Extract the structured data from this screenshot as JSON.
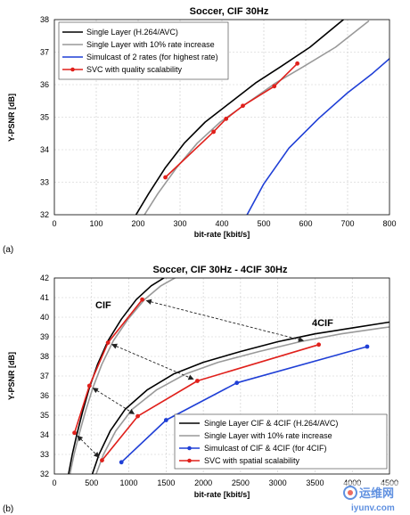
{
  "chart_data": [
    {
      "type": "line",
      "panel_label": "(a)",
      "title": "Soccer, CIF 30Hz",
      "xlabel": "bit-rate [kbit/s]",
      "ylabel": "Y-PSNR [dB]",
      "xlim": [
        0,
        800
      ],
      "ylim": [
        32,
        38
      ],
      "x_ticks": [
        "0",
        "100",
        "200",
        "300",
        "400",
        "500",
        "600",
        "700",
        "800"
      ],
      "y_ticks": [
        "32",
        "33",
        "34",
        "35",
        "36",
        "37",
        "38"
      ],
      "grid": true,
      "legend_position": "top-left",
      "series": [
        {
          "name": "Single Layer (H.264/AVC)",
          "color": "#000000",
          "marker": "none",
          "x": [
            195,
            225,
            265,
            310,
            360,
            420,
            480,
            540,
            610,
            690
          ],
          "y": [
            32.0,
            32.65,
            33.45,
            34.2,
            34.85,
            35.45,
            36.05,
            36.55,
            37.15,
            38.0
          ]
        },
        {
          "name": "Single Layer with 10% rate increase",
          "color": "#999999",
          "marker": "none",
          "x": [
            215,
            247,
            292,
            341,
            396,
            462,
            528,
            594,
            671,
            750
          ],
          "y": [
            32.0,
            32.65,
            33.45,
            34.2,
            34.85,
            35.45,
            36.05,
            36.55,
            37.15,
            37.95
          ]
        },
        {
          "name": "Simulcast of 2 rates (for highest rate)",
          "color": "#1f3fd6",
          "marker": "none",
          "x": [
            460,
            500,
            560,
            630,
            700,
            760,
            800
          ],
          "y": [
            32.0,
            32.95,
            34.05,
            34.95,
            35.75,
            36.35,
            36.8
          ]
        },
        {
          "name": "SVC with quality scalability",
          "color": "#e0201b",
          "marker": "circle",
          "x": [
            265,
            380,
            410,
            450,
            525,
            580
          ],
          "y": [
            33.15,
            34.55,
            34.95,
            35.35,
            35.95,
            36.65
          ]
        }
      ]
    },
    {
      "type": "line",
      "panel_label": "(b)",
      "title": "Soccer, CIF 30Hz - 4CIF 30Hz",
      "xlabel": "bit-rate [kbit/s]",
      "ylabel": "Y-PSNR [dB]",
      "xlim": [
        0,
        4500
      ],
      "ylim": [
        32,
        42
      ],
      "x_ticks": [
        "0",
        "500",
        "1000",
        "1500",
        "2000",
        "2500",
        "3000",
        "3500",
        "4000",
        "4500"
      ],
      "y_ticks": [
        "32",
        "33",
        "34",
        "35",
        "36",
        "37",
        "38",
        "39",
        "40",
        "41",
        "42"
      ],
      "grid": true,
      "legend_position": "bottom-right",
      "region_labels": [
        "CIF",
        "4CIF"
      ],
      "series": [
        {
          "name": "Single Layer CIF & 4CIF (H.264/AVC)",
          "color": "#000000",
          "marker": "none",
          "segments": [
            {
              "x": [
                190,
                240,
                300,
                380,
                470,
                580,
                720,
                900,
                1100,
                1300,
                1470
              ],
              "y": [
                32.0,
                33.0,
                34.0,
                35.2,
                36.4,
                37.6,
                38.8,
                39.9,
                40.9,
                41.6,
                42.0
              ]
            },
            {
              "x": [
                510,
                600,
                750,
                950,
                1250,
                1600,
                2000,
                2500,
                3000,
                3500,
                4000,
                4500
              ],
              "y": [
                32.0,
                33.0,
                34.2,
                35.3,
                36.3,
                37.1,
                37.7,
                38.25,
                38.75,
                39.15,
                39.45,
                39.75
              ]
            }
          ]
        },
        {
          "name": "Single Layer with 10% rate increase",
          "color": "#999999",
          "marker": "none",
          "segments": [
            {
              "x": [
                209,
                264,
                330,
                418,
                517,
                638,
                792,
                990,
                1210,
                1430,
                1617
              ],
              "y": [
                32.0,
                33.0,
                34.0,
                35.2,
                36.4,
                37.6,
                38.8,
                39.9,
                40.9,
                41.6,
                42.0
              ]
            },
            {
              "x": [
                561,
                660,
                825,
                1045,
                1375,
                1760,
                2200,
                2750,
                3300,
                3850,
                4400,
                4500
              ],
              "y": [
                32.0,
                33.0,
                34.2,
                35.3,
                36.3,
                37.1,
                37.7,
                38.25,
                38.75,
                39.15,
                39.45,
                39.5
              ]
            }
          ]
        },
        {
          "name": "Simulcast of CIF & 4CIF (for 4CIF)",
          "color": "#1f3fd6",
          "marker": "circle",
          "x": [
            900,
            1500,
            2450,
            4200
          ],
          "y": [
            32.6,
            34.75,
            36.65,
            38.5
          ]
        },
        {
          "name": "SVC with spatial scalability",
          "color": "#e0201b",
          "marker": "circle",
          "segments": [
            {
              "x": [
                270,
                470,
                720,
                1180
              ],
              "y": [
                34.1,
                36.5,
                38.7,
                40.9
              ]
            },
            {
              "x": [
                640,
                1120,
                1920,
                3550
              ],
              "y": [
                32.7,
                34.95,
                36.75,
                38.6
              ]
            }
          ]
        }
      ],
      "annotations": [
        {
          "type": "double-arrow",
          "from": [
            1180,
            40.9
          ],
          "to": [
            3400,
            38.75
          ]
        },
        {
          "type": "double-arrow",
          "from": [
            720,
            38.7
          ],
          "to": [
            1920,
            36.75
          ]
        },
        {
          "type": "double-arrow",
          "from": [
            470,
            36.5
          ],
          "to": [
            1120,
            34.95
          ]
        },
        {
          "type": "double-arrow",
          "from": [
            270,
            34.1
          ],
          "to": [
            640,
            32.7
          ]
        }
      ]
    }
  ],
  "watermark": {
    "chinese": "运维网",
    "url": "iyunv.com"
  }
}
